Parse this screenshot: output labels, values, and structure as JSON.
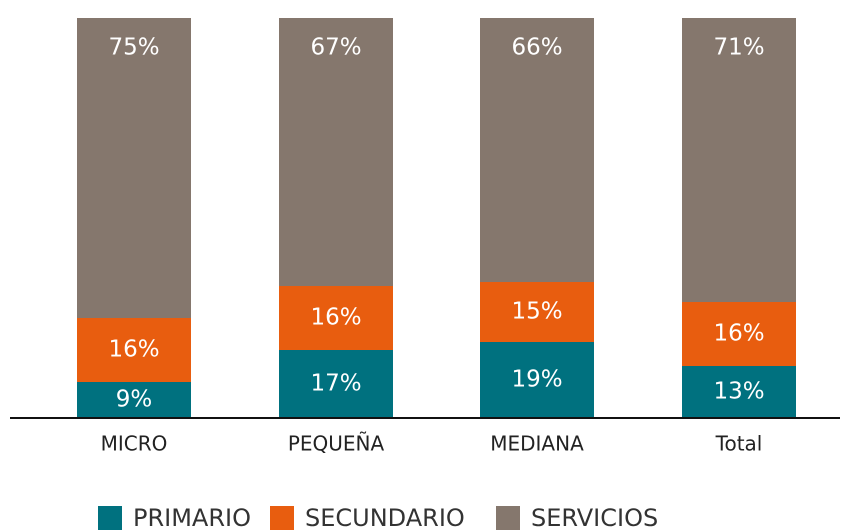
{
  "chart_data": {
    "type": "stacked-bar",
    "categories": [
      "MICRO",
      "PEQUEÑA",
      "MEDIANA",
      "Total"
    ],
    "series": [
      {
        "name": "PRIMARIO",
        "color": "#00717f",
        "values": [
          9,
          17,
          19,
          13
        ],
        "value_labels": [
          "9%",
          "17%",
          "19%",
          "13%"
        ]
      },
      {
        "name": "SECUNDARIO",
        "color": "#e85d0f",
        "values": [
          16,
          16,
          15,
          16
        ],
        "value_labels": [
          "16%",
          "16%",
          "15%",
          "16%"
        ]
      },
      {
        "name": "SERVICIOS",
        "color": "#85776d",
        "values": [
          75,
          67,
          66,
          71
        ],
        "value_labels": [
          "75%",
          "67%",
          "66%",
          "71%"
        ]
      }
    ],
    "ylim": [
      0,
      100
    ]
  }
}
